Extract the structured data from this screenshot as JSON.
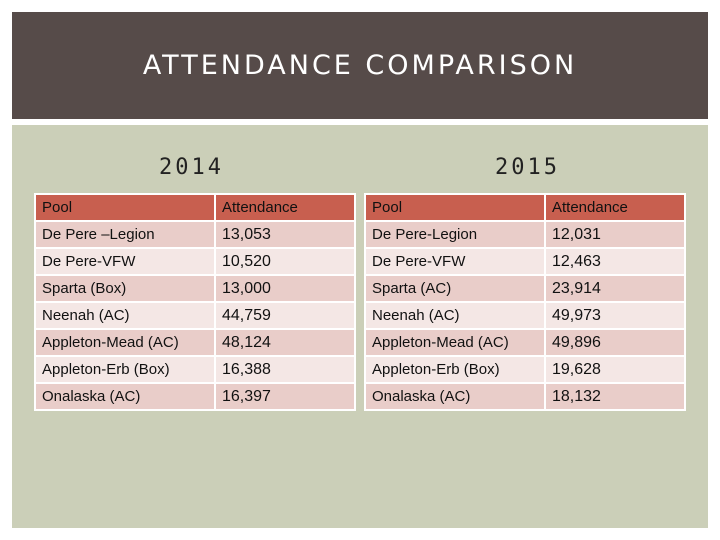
{
  "title": "ATTENDANCE COMPARISON",
  "table_2014": {
    "year": "2014",
    "headers": [
      "Pool",
      "Attendance"
    ],
    "rows": [
      [
        "De Pere –Legion",
        "13,053"
      ],
      [
        "De Pere-VFW",
        "10,520"
      ],
      [
        "Sparta (Box)",
        "13,000"
      ],
      [
        "Neenah (AC)",
        "44,759"
      ],
      [
        "Appleton-Mead (AC)",
        "48,124"
      ],
      [
        "Appleton-Erb (Box)",
        "16,388"
      ],
      [
        "Onalaska (AC)",
        "16,397"
      ]
    ]
  },
  "table_2015": {
    "year": "2015",
    "headers": [
      "Pool",
      "Attendance"
    ],
    "rows": [
      [
        "De Pere-Legion",
        "12,031"
      ],
      [
        "De Pere-VFW",
        "12,463"
      ],
      [
        "Sparta (AC)",
        "23,914"
      ],
      [
        "Neenah (AC)",
        "49,973"
      ],
      [
        "Appleton-Mead (AC)",
        "49,896"
      ],
      [
        "Appleton-Erb (Box)",
        "19,628"
      ],
      [
        "Onalaska (AC)",
        "18,132"
      ]
    ]
  },
  "colors": {
    "title_bar": "#564b49",
    "content_bg": "#cbcfb8",
    "header_row": "#c85f4f",
    "row_odd": "#e9cdc9",
    "row_even": "#f4e7e5"
  }
}
